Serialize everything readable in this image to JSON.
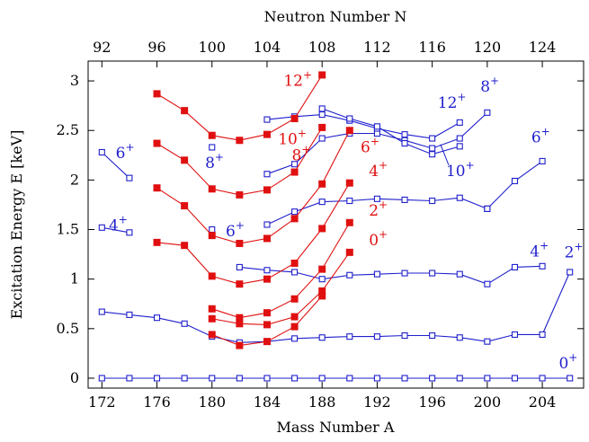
{
  "chart_data": {
    "type": "line",
    "xlabel": "Mass Number A",
    "ylabel": "Excitation Energy E [keV]",
    "x2label": "Neutron Number N",
    "xlim": [
      171,
      207
    ],
    "ylim": [
      -0.1,
      3.2
    ],
    "x_ticks": [
      172,
      176,
      180,
      184,
      188,
      192,
      196,
      200,
      204
    ],
    "x_tick_labels": [
      "172",
      "176",
      "180",
      "184",
      "188",
      "192",
      "196",
      "200",
      "204"
    ],
    "y_ticks": [
      0,
      0.5,
      1,
      1.5,
      2,
      2.5,
      3
    ],
    "y_tick_labels": [
      "0",
      "0.5",
      "1",
      "1.5",
      "2",
      "2.5",
      "3"
    ],
    "x2_ticks": [
      172,
      176,
      180,
      184,
      188,
      192,
      196,
      200,
      204
    ],
    "x2_tick_labels": [
      "92",
      "96",
      "100",
      "104",
      "108",
      "112",
      "116",
      "120",
      "124"
    ],
    "grid": false,
    "colors": {
      "blue": "#1f1fcc",
      "red": "#e01010"
    },
    "series": [
      {
        "color": "blue",
        "marker": "open-square",
        "x": [
          172,
          174,
          176,
          178,
          180,
          182,
          184,
          186,
          188,
          190,
          192,
          194,
          196,
          198,
          200,
          202,
          204,
          206
        ],
        "y": [
          0,
          0,
          0,
          0,
          0,
          0,
          0,
          0,
          0,
          0,
          0,
          0,
          0,
          0,
          0,
          0,
          0,
          0
        ]
      },
      {
        "color": "blue",
        "marker": "open-square",
        "x": [
          172,
          174,
          176,
          178,
          180,
          182,
          184,
          186,
          188,
          190,
          192,
          194,
          196,
          198,
          200,
          202,
          204,
          206
        ],
        "y": [
          0.67,
          0.64,
          0.61,
          0.55,
          0.42,
          0.36,
          0.37,
          0.4,
          0.41,
          0.42,
          0.42,
          0.43,
          0.43,
          0.41,
          0.37,
          0.44,
          0.44,
          1.07
        ]
      },
      {
        "color": "blue",
        "marker": "open-square",
        "x": [
          182,
          184,
          186,
          188,
          190,
          192,
          194,
          196,
          198,
          200,
          202,
          204
        ],
        "y": [
          1.12,
          1.09,
          1.07,
          1.0,
          1.04,
          1.05,
          1.06,
          1.06,
          1.05,
          0.95,
          1.12,
          1.13
        ]
      },
      {
        "color": "blue",
        "marker": "open-square",
        "x": [
          172,
          174
        ],
        "y": [
          1.52,
          1.47
        ]
      },
      {
        "color": "blue",
        "marker": "open-square",
        "x": [
          184,
          186,
          188,
          190,
          192,
          194,
          196,
          198,
          200
        ],
        "y": [
          1.55,
          1.68,
          1.78,
          1.79,
          1.81,
          1.8,
          1.79,
          1.82,
          1.71
        ]
      },
      {
        "color": "blue",
        "marker": "open-square",
        "x": [
          200,
          202,
          204
        ],
        "y": [
          1.71,
          1.99,
          2.19
        ]
      },
      {
        "color": "blue",
        "marker": "open-square",
        "x": [
          172,
          174
        ],
        "y": [
          2.28,
          2.02
        ]
      },
      {
        "color": "blue",
        "marker": "open-square",
        "x": [
          184,
          186,
          188,
          190,
          192,
          194,
          196,
          198,
          200
        ],
        "y": [
          2.06,
          2.16,
          2.42,
          2.47,
          2.47,
          2.4,
          2.32,
          2.42,
          2.68
        ]
      },
      {
        "color": "blue",
        "marker": "open-square",
        "x": [
          184,
          186,
          188,
          190,
          192,
          194,
          196,
          198
        ],
        "y": [
          2.61,
          2.64,
          2.66,
          2.6,
          2.52,
          2.46,
          2.42,
          2.58
        ]
      },
      {
        "color": "blue",
        "marker": "open-square",
        "x": [
          188,
          190,
          192,
          194,
          196,
          198
        ],
        "y": [
          2.72,
          2.62,
          2.54,
          2.37,
          2.26,
          2.34
        ]
      },
      {
        "color": "blue",
        "marker": "open-square",
        "x": [
          180
        ],
        "y": [
          1.5
        ]
      },
      {
        "color": "blue",
        "marker": "open-square",
        "x": [
          180
        ],
        "y": [
          2.33
        ]
      },
      {
        "color": "red",
        "marker": "filled-square",
        "x": [
          180,
          182,
          184,
          186,
          188
        ],
        "y": [
          0.44,
          0.33,
          0.37,
          0.52,
          0.83
        ]
      },
      {
        "color": "red",
        "marker": "filled-square",
        "x": [
          180,
          182,
          184,
          186,
          188,
          190
        ],
        "y": [
          0.6,
          0.55,
          0.54,
          0.62,
          0.88,
          1.27
        ]
      },
      {
        "color": "red",
        "marker": "filled-square",
        "x": [
          180,
          182,
          184,
          186,
          188,
          190
        ],
        "y": [
          0.7,
          0.61,
          0.66,
          0.8,
          1.1,
          1.57
        ]
      },
      {
        "color": "red",
        "marker": "filled-square",
        "x": [
          176,
          178,
          180,
          182,
          184,
          186,
          188,
          190
        ],
        "y": [
          1.37,
          1.34,
          1.03,
          0.95,
          1.0,
          1.16,
          1.51,
          1.97
        ]
      },
      {
        "color": "red",
        "marker": "filled-square",
        "x": [
          176,
          178,
          180,
          182,
          184,
          186,
          188,
          190
        ],
        "y": [
          1.92,
          1.74,
          1.44,
          1.36,
          1.41,
          1.61,
          1.96,
          2.5
        ]
      },
      {
        "color": "red",
        "marker": "filled-square",
        "x": [
          176,
          178,
          180,
          182,
          184,
          186,
          188
        ],
        "y": [
          2.37,
          2.2,
          1.91,
          1.85,
          1.9,
          2.08,
          2.53
        ]
      },
      {
        "color": "red",
        "marker": "filled-square",
        "x": [
          176,
          178,
          180,
          182,
          184,
          186,
          188
        ],
        "y": [
          2.87,
          2.7,
          2.45,
          2.4,
          2.46,
          2.62,
          3.06
        ]
      }
    ],
    "annotations": [
      {
        "text": "0",
        "sup": "+",
        "color": "blue",
        "x": 205.2,
        "y": 0.1
      },
      {
        "text": "2",
        "sup": "+",
        "color": "blue",
        "x": 205.6,
        "y": 1.22
      },
      {
        "text": "4",
        "sup": "+",
        "color": "blue",
        "x": 172.5,
        "y": 1.49
      },
      {
        "text": "4",
        "sup": "+",
        "color": "blue",
        "x": 203.1,
        "y": 1.23
      },
      {
        "text": "6",
        "sup": "+",
        "color": "blue",
        "x": 173.0,
        "y": 2.22
      },
      {
        "text": "6",
        "sup": "+",
        "color": "blue",
        "x": 181.0,
        "y": 1.43
      },
      {
        "text": "6",
        "sup": "+",
        "color": "blue",
        "x": 203.2,
        "y": 2.38
      },
      {
        "text": "8",
        "sup": "+",
        "color": "blue",
        "x": 179.5,
        "y": 2.12
      },
      {
        "text": "8",
        "sup": "+",
        "color": "blue",
        "x": 199.5,
        "y": 2.89
      },
      {
        "text": "10",
        "sup": "+",
        "color": "blue",
        "x": 197.0,
        "y": 2.04
      },
      {
        "text": "12",
        "sup": "+",
        "color": "blue",
        "x": 196.4,
        "y": 2.73
      },
      {
        "text": "0",
        "sup": "+",
        "color": "red",
        "x": 191.4,
        "y": 1.34
      },
      {
        "text": "2",
        "sup": "+",
        "color": "red",
        "x": 191.4,
        "y": 1.64
      },
      {
        "text": "4",
        "sup": "+",
        "color": "red",
        "x": 191.4,
        "y": 2.04
      },
      {
        "text": "6",
        "sup": "+",
        "color": "red",
        "x": 190.8,
        "y": 2.28
      },
      {
        "text": "8",
        "sup": "+",
        "color": "red",
        "x": 185.8,
        "y": 2.2
      },
      {
        "text": "10",
        "sup": "+",
        "color": "red",
        "x": 184.8,
        "y": 2.36
      },
      {
        "text": "12",
        "sup": "+",
        "color": "red",
        "x": 185.2,
        "y": 2.95
      }
    ]
  }
}
